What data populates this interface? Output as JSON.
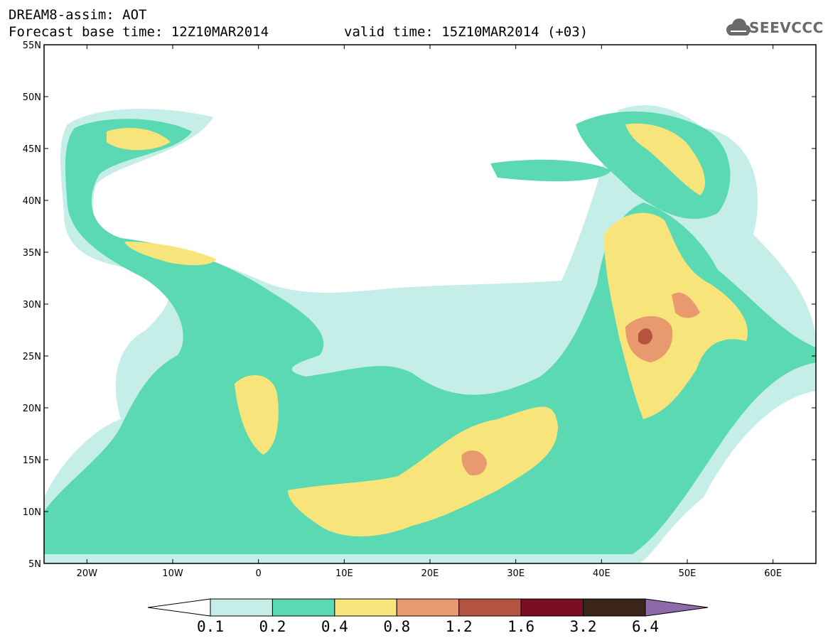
{
  "header": {
    "title": "DREAM8-assim: AOT",
    "base_time": "Forecast base time: 12Z10MAR2014",
    "valid_time": "valid time: 15Z10MAR2014 (+03)",
    "logo_text": "SEEVCCC"
  },
  "map": {
    "lon_range": [
      -25,
      65
    ],
    "lat_range": [
      5,
      55
    ],
    "lon_ticks": [
      {
        "value": -20,
        "label": "20W"
      },
      {
        "value": -10,
        "label": "10W"
      },
      {
        "value": 0,
        "label": "0"
      },
      {
        "value": 10,
        "label": "10E"
      },
      {
        "value": 20,
        "label": "20E"
      },
      {
        "value": 30,
        "label": "30E"
      },
      {
        "value": 40,
        "label": "40E"
      },
      {
        "value": 50,
        "label": "50E"
      },
      {
        "value": 60,
        "label": "60E"
      }
    ],
    "lat_ticks": [
      {
        "value": 55,
        "label": "55N"
      },
      {
        "value": 50,
        "label": "50N"
      },
      {
        "value": 45,
        "label": "45N"
      },
      {
        "value": 40,
        "label": "40N"
      },
      {
        "value": 35,
        "label": "35N"
      },
      {
        "value": 30,
        "label": "30N"
      },
      {
        "value": 25,
        "label": "25N"
      },
      {
        "value": 20,
        "label": "20N"
      },
      {
        "value": 15,
        "label": "15N"
      },
      {
        "value": 10,
        "label": "10N"
      },
      {
        "value": 5,
        "label": "5N"
      }
    ]
  },
  "colorbar": {
    "levels": [
      "0.1",
      "0.2",
      "0.4",
      "0.8",
      "1.2",
      "1.6",
      "3.2",
      "6.4"
    ],
    "colors": [
      "#ffffff",
      "#c6eee9",
      "#5ad9b2",
      "#f7e47a",
      "#e89a6e",
      "#b4533f",
      "#7b0e25",
      "#3b2418",
      "#8e6aa8"
    ]
  }
}
